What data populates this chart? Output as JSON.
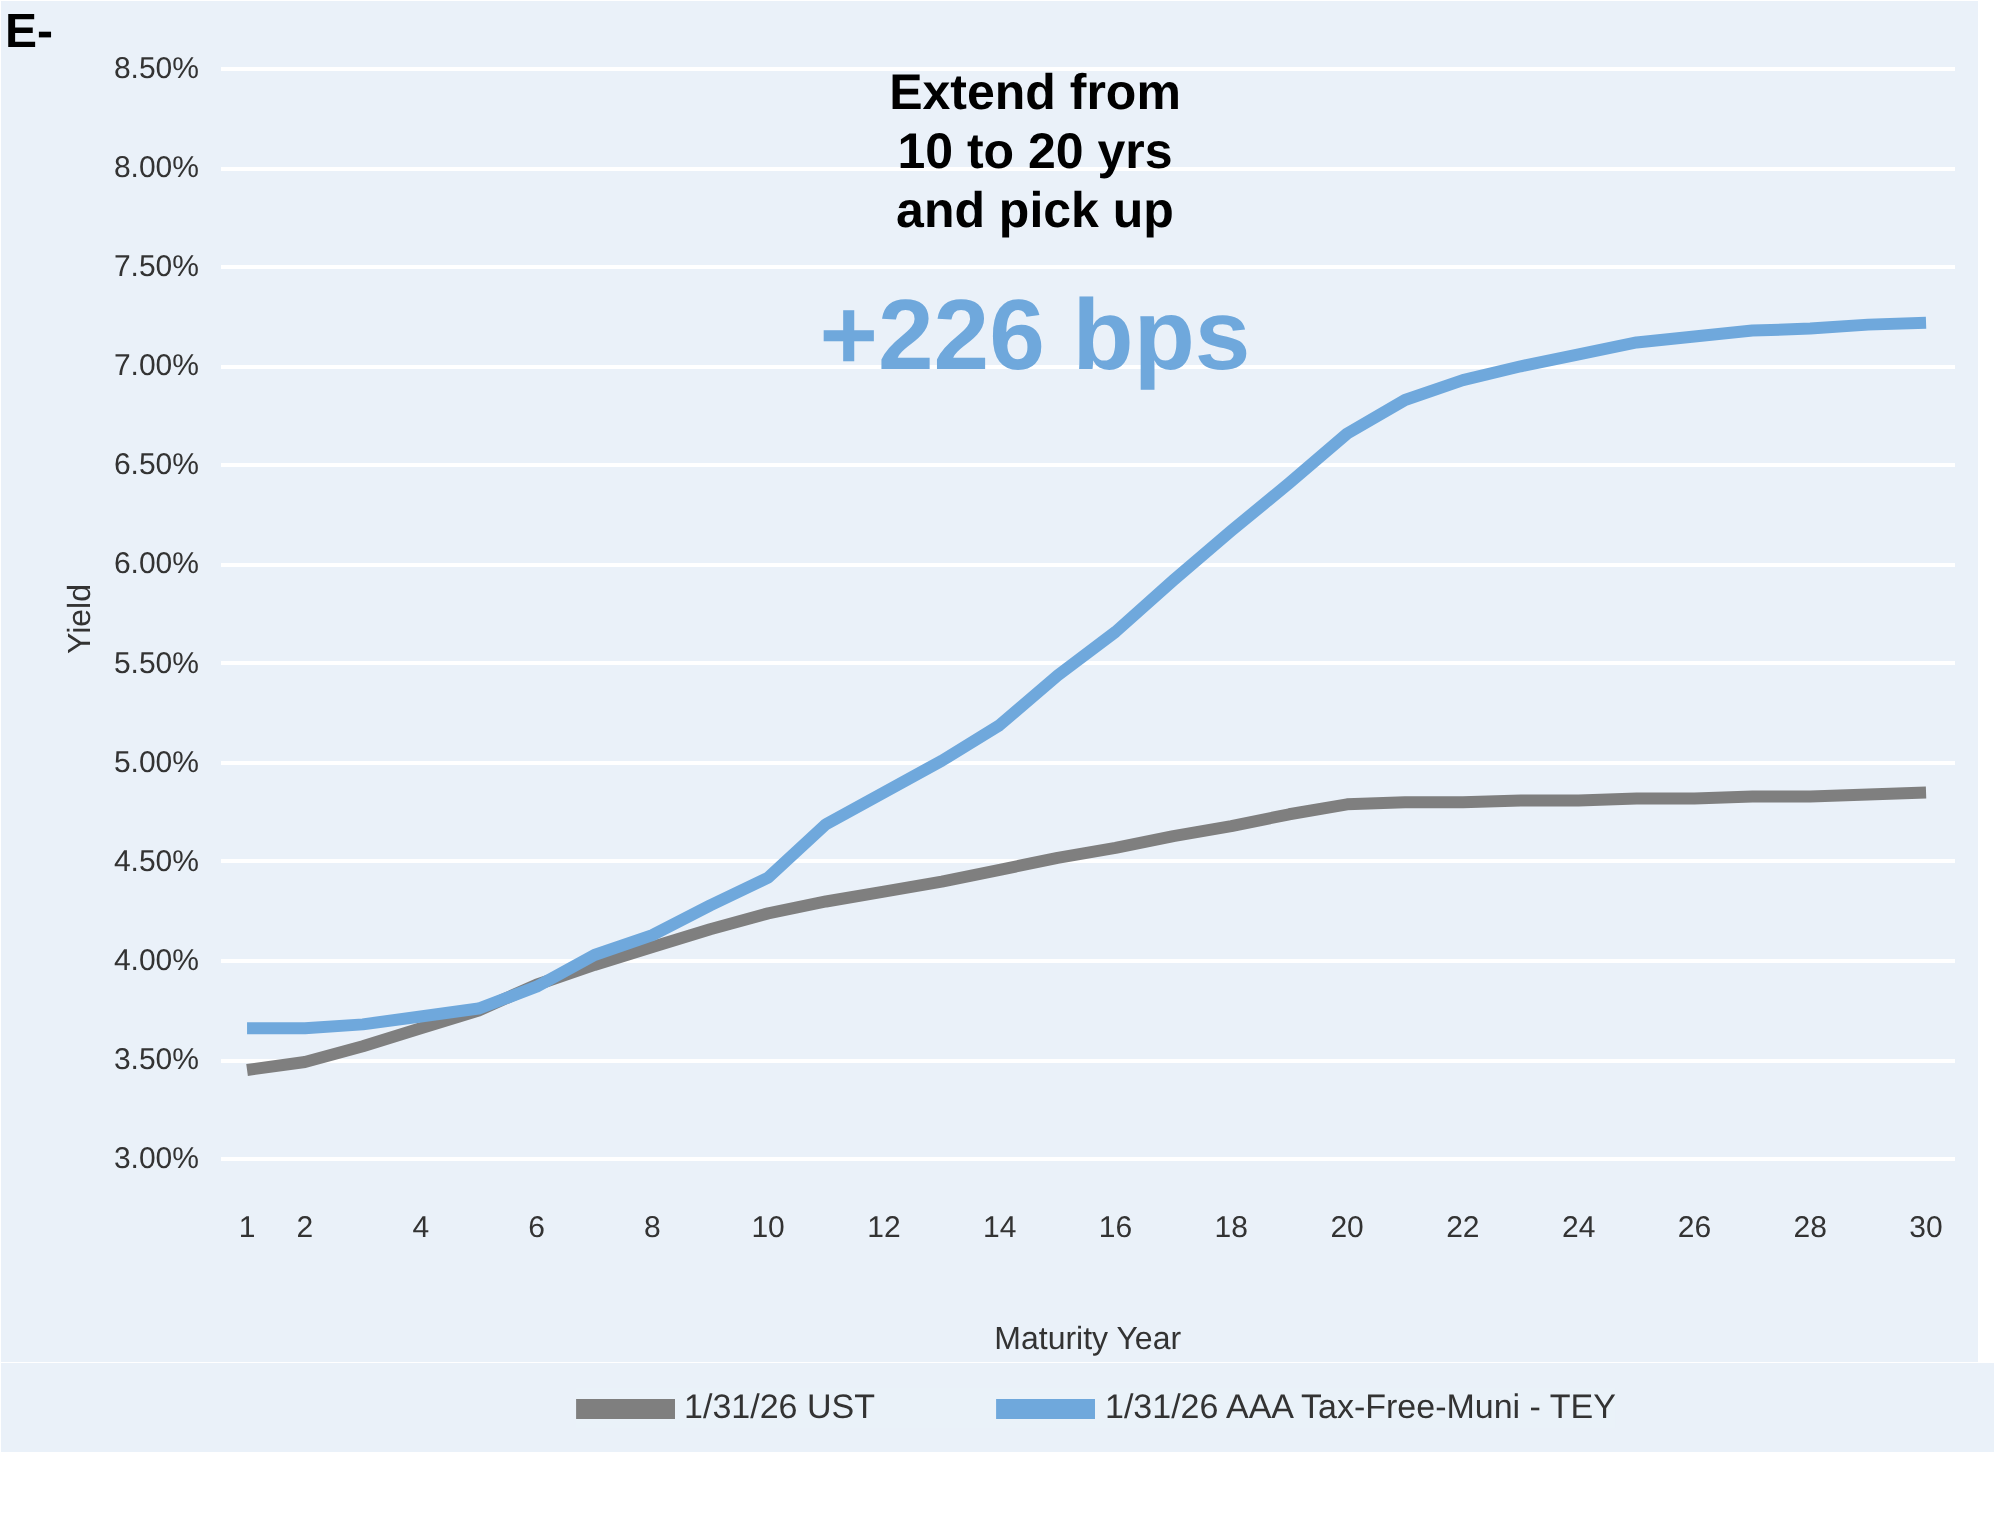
{
  "chart_data": {
    "type": "line",
    "xlabel": "Maturity Year",
    "ylabel": "Yield",
    "annotations": [
      "E-",
      "Extend from\n10 to 20 yrs\nand pick up",
      "+226 bps"
    ],
    "x": [
      1,
      2,
      3,
      4,
      5,
      6,
      7,
      8,
      9,
      10,
      11,
      12,
      13,
      14,
      15,
      16,
      17,
      18,
      19,
      20,
      21,
      22,
      23,
      24,
      25,
      26,
      27,
      28,
      29,
      30
    ],
    "series": [
      {
        "name": "1/31/26 UST",
        "color": "#7f7f7f",
        "values": [
          3.45,
          3.49,
          3.57,
          3.66,
          3.75,
          3.88,
          3.98,
          4.07,
          4.16,
          4.24,
          4.3,
          4.35,
          4.4,
          4.46,
          4.52,
          4.57,
          4.63,
          4.68,
          4.74,
          4.79,
          4.8,
          4.8,
          4.81,
          4.81,
          4.82,
          4.82,
          4.83,
          4.83,
          4.84,
          4.85
        ]
      },
      {
        "name": "1/31/26 AAA Tax-Free-Muni - TEY",
        "color": "#6fa8dc",
        "values": [
          3.66,
          3.66,
          3.68,
          3.72,
          3.76,
          3.87,
          4.03,
          4.13,
          4.28,
          4.42,
          4.69,
          4.85,
          5.01,
          5.19,
          5.44,
          5.66,
          5.92,
          6.17,
          6.41,
          6.66,
          6.83,
          6.93,
          7.0,
          7.06,
          7.12,
          7.15,
          7.18,
          7.19,
          7.21,
          7.22
        ]
      }
    ],
    "xlim": [
      0.55,
      30.5
    ],
    "ylim": [
      2.9,
      8.55
    ],
    "xticks": [
      1,
      2,
      4,
      6,
      8,
      10,
      12,
      14,
      16,
      18,
      20,
      22,
      24,
      26,
      28,
      30
    ],
    "yticks": [
      {
        "value": 3.0,
        "label": "3.00%"
      },
      {
        "value": 3.5,
        "label": "3.50%"
      },
      {
        "value": 4.0,
        "label": "4.00%"
      },
      {
        "value": 4.5,
        "label": "4.50%"
      },
      {
        "value": 5.0,
        "label": "5.00%"
      },
      {
        "value": 5.5,
        "label": "5.50%"
      },
      {
        "value": 6.0,
        "label": "6.00%"
      },
      {
        "value": 6.5,
        "label": "6.50%"
      },
      {
        "value": 7.0,
        "label": "7.00%"
      },
      {
        "value": 7.5,
        "label": "7.50%"
      },
      {
        "value": 8.0,
        "label": "8.00%"
      },
      {
        "value": 8.5,
        "label": "8.50%"
      }
    ],
    "grid": "y",
    "legend": "bottom",
    "line_style": "solid",
    "marker": "none"
  }
}
